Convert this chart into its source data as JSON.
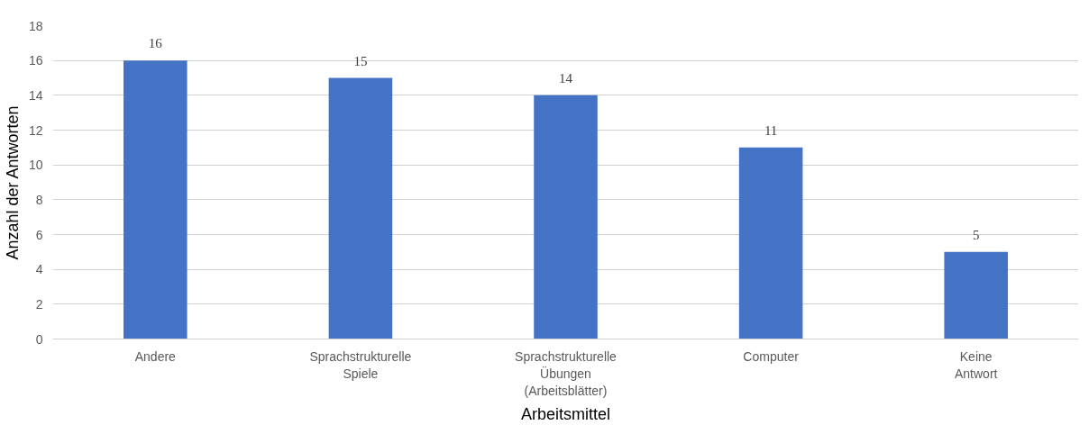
{
  "chart_data": {
    "type": "bar",
    "xlabel": "Arbeitsmittel",
    "ylabel": "Anzahl der Antworten",
    "categories": [
      "Andere",
      "Sprachstrukturelle Spiele",
      "Sprachstrukturelle Übungen (Arbeitsblätter)",
      "Computer",
      "Keine Antwort"
    ],
    "values": [
      16,
      15,
      14,
      11,
      5
    ],
    "color": "#4472c4",
    "ylim": [
      0,
      18
    ],
    "yticks": [
      0,
      2,
      4,
      6,
      8,
      10,
      12,
      14,
      16,
      18
    ],
    "grid": "y",
    "data_labels": true
  }
}
